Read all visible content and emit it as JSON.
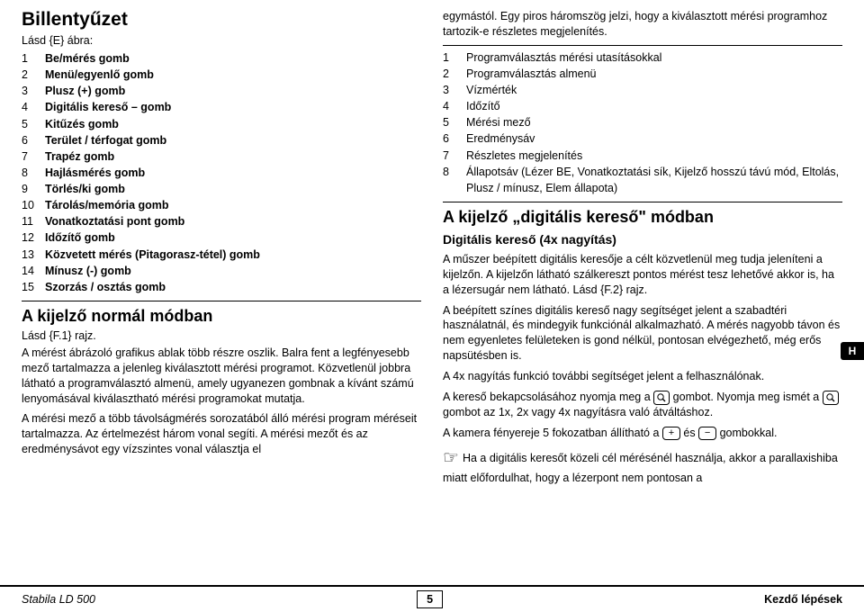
{
  "colors": {
    "text": "#000000",
    "bg": "#ffffff"
  },
  "fonts": {
    "body_pt": 12.5,
    "h1_pt": 21,
    "h2_pt": 18,
    "h3_pt": 14
  },
  "left": {
    "title": "Billentyűzet",
    "figref": "Lásd {E} ábra:",
    "keys": [
      {
        "n": "1",
        "t": "Be/mérés gomb"
      },
      {
        "n": "2",
        "t": "Menü/egyenlő gomb"
      },
      {
        "n": "3",
        "t": "Plusz (+) gomb"
      },
      {
        "n": "4",
        "t": "Digitális kereső – gomb"
      },
      {
        "n": "5",
        "t": "Kitűzés gomb"
      },
      {
        "n": "6",
        "t": "Terület / térfogat gomb"
      },
      {
        "n": "7",
        "t": "Trapéz gomb"
      },
      {
        "n": "8",
        "t": "Hajlásmérés gomb"
      },
      {
        "n": "9",
        "t": "Törlés/ki gomb"
      },
      {
        "n": "10",
        "t": "Tárolás/memória gomb"
      },
      {
        "n": "11",
        "t": "Vonatkoztatási pont gomb"
      },
      {
        "n": "12",
        "t": "Időzítő gomb"
      },
      {
        "n": "13",
        "t": "Közvetett mérés (Pitagorasz-tétel) gomb"
      },
      {
        "n": "14",
        "t": "Mínusz (-) gomb"
      },
      {
        "n": "15",
        "t": "Szorzás / osztás gomb"
      }
    ],
    "h2": "A kijelző normál módban",
    "ref2": "Lásd {F.1} rajz.",
    "p1": "A mérést ábrázoló grafikus ablak több részre oszlik. Balra fent a legfényesebb mező tartalmazza a jelenleg kiválasztott mérési programot. Közvetlenül jobbra látható a programválasztó almenü, amely ugyanezen gombnak a kívánt számú lenyomásával kiválasztható mérési programokat mutatja.",
    "p2": "A mérési mező a több távolságmérés sorozatából álló mérési program méréseit tartalmazza. Az értelmezést három vonal segíti. A mérési mezőt és az eredménysávot egy vízszintes vonal választja el"
  },
  "right": {
    "p0": "egymástól. Egy piros háromszög jelzi, hogy a kiválasztott mérési programhoz tartozik-e részletes megjelenítés.",
    "items": [
      {
        "n": "1",
        "t": "Programválasztás mérési utasításokkal"
      },
      {
        "n": "2",
        "t": "Programválasztás almenü"
      },
      {
        "n": "3",
        "t": "Vízmérték"
      },
      {
        "n": "4",
        "t": "Időzítő"
      },
      {
        "n": "5",
        "t": "Mérési mező"
      },
      {
        "n": "6",
        "t": "Eredménysáv"
      },
      {
        "n": "7",
        "t": "Részletes megjelenítés"
      },
      {
        "n": "8",
        "t": "Állapotsáv (Lézer BE, Vonatkoztatási sík, Kijelző hosszú távú mód, Eltolás, Plusz / mínusz, Elem állapota)"
      }
    ],
    "h2": "A kijelző „digitális kereső\" módban",
    "h3": "Digitális kereső (4x nagyítás)",
    "p1": "A műszer beépített digitális keresője a célt közvetlenül meg tudja jeleníteni a kijelzőn. A kijelzőn látható szálkereszt pontos mérést tesz lehetővé akkor is, ha a lézersugár nem látható. Lásd {F.2} rajz.",
    "p2": "A beépített színes digitális kereső nagy segítséget jelent a szabadtéri használatnál, és mindegyik funkciónál alkalmazható. A mérés nagyobb távon és nem egyenletes felületeken is gond nélkül, pontosan elvégezhető, még erős napsütésben is.",
    "p3": "A 4x nagyítás funkció további segítséget jelent a felhasználónak.",
    "p4a": "A kereső bekapcsolásához nyomja meg a",
    "p4b": "gombot. Nyomja meg ismét a",
    "p4c": "gombot az 1x, 2x vagy 4x nagyításra való átváltáshoz.",
    "p5a": "A kamera fényereje 5 fokozatban állítható a",
    "p5_plus": "+",
    "p5_and": "és",
    "p5_minus": "−",
    "p5b": "gombokkal.",
    "tip": "Ha a digitális keresőt közeli cél mérésénél használja, akkor a parallaxishiba miatt előfordulhat, hogy a lézerpont nem pontosan a"
  },
  "tab": "H",
  "footer": {
    "left": "Stabila LD 500",
    "page": "5",
    "right": "Kezdő lépések"
  }
}
